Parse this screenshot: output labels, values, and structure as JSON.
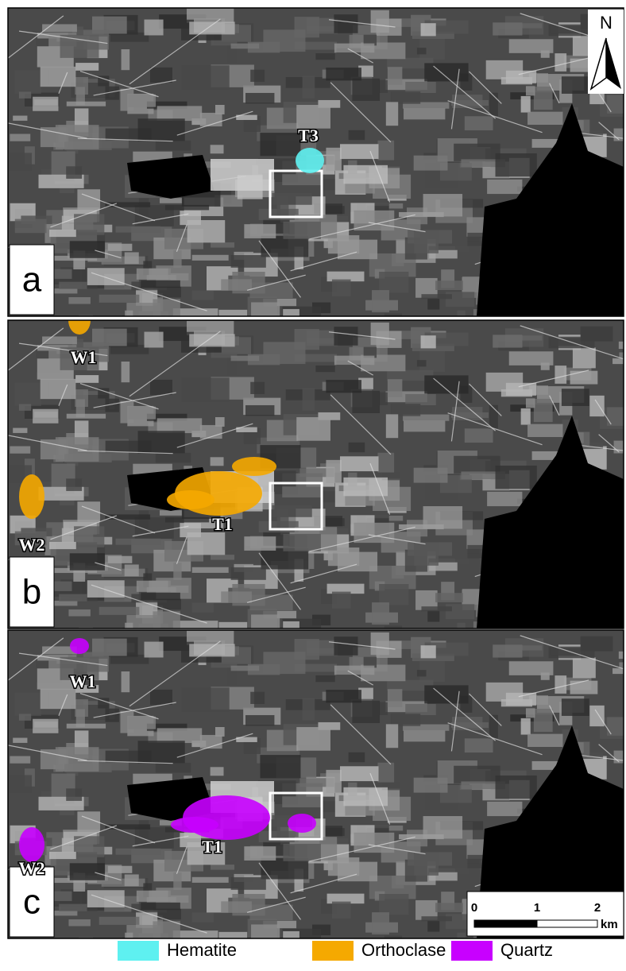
{
  "north_arrow": {
    "label": "N"
  },
  "panels": [
    {
      "label": "a",
      "sites": [
        "T3"
      ]
    },
    {
      "label": "b",
      "sites": [
        "W1",
        "T1",
        "W2"
      ]
    },
    {
      "label": "c",
      "sites": [
        "W1",
        "T1",
        "W2"
      ]
    }
  ],
  "scale_bar": {
    "ticks": [
      "0",
      "1",
      "2"
    ],
    "unit": "km"
  },
  "legend": [
    {
      "name": "Hematite",
      "color": "#5ef0f0"
    },
    {
      "name": "Orthoclase",
      "color": "#f5a900"
    },
    {
      "name": "Quartz",
      "color": "#c800ff"
    }
  ]
}
